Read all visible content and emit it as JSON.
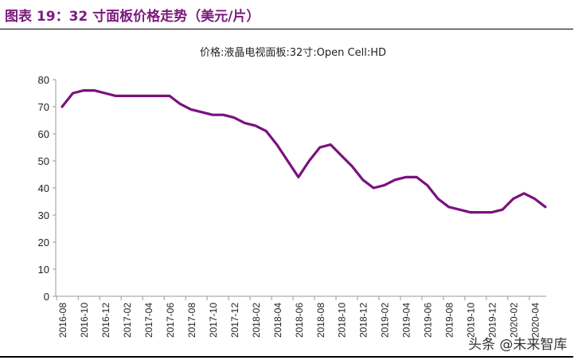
{
  "figure_title": "图表 19：32 寸面板价格走势（美元/片）",
  "watermark": "头条 @未来智库",
  "chart_data": {
    "type": "line",
    "title": "价格:液晶电视面板:32寸:Open Cell:HD",
    "xlabel": "",
    "ylabel": "",
    "ylim": [
      0,
      80
    ],
    "yticks": [
      0,
      10,
      20,
      30,
      40,
      50,
      60,
      70,
      80
    ],
    "grid": false,
    "color": "#7b117e",
    "x": [
      "2016-08",
      "2016-09",
      "2016-10",
      "2016-11",
      "2016-12",
      "2017-01",
      "2017-02",
      "2017-03",
      "2017-04",
      "2017-05",
      "2017-06",
      "2017-07",
      "2017-08",
      "2017-09",
      "2017-10",
      "2017-11",
      "2017-12",
      "2018-01",
      "2018-02",
      "2018-03",
      "2018-04",
      "2018-05",
      "2018-06",
      "2018-07",
      "2018-08",
      "2018-09",
      "2018-10",
      "2018-11",
      "2018-12",
      "2019-01",
      "2019-02",
      "2019-03",
      "2019-04",
      "2019-05",
      "2019-06",
      "2019-07",
      "2019-08",
      "2019-09",
      "2019-10",
      "2019-11",
      "2019-12",
      "2020-01",
      "2020-02",
      "2020-03",
      "2020-04",
      "2020-05"
    ],
    "values": [
      70,
      75,
      76,
      76,
      75,
      74,
      74,
      74,
      74,
      74,
      74,
      71,
      69,
      68,
      67,
      67,
      66,
      64,
      63,
      61,
      56,
      50,
      44,
      50,
      55,
      56,
      52,
      48,
      43,
      40,
      41,
      43,
      44,
      44,
      41,
      36,
      33,
      32,
      31,
      31,
      31,
      32,
      36,
      38,
      36,
      33
    ],
    "xticklabels": [
      "2016-08",
      "2016-10",
      "2016-12",
      "2017-02",
      "2017-04",
      "2017-06",
      "2017-08",
      "2017-10",
      "2017-12",
      "2018-02",
      "2018-04",
      "2018-06",
      "2018-08",
      "2018-10",
      "2018-12",
      "2019-02",
      "2019-04",
      "2019-06",
      "2019-08",
      "2019-10",
      "2019-12",
      "2020-02",
      "2020-04"
    ]
  }
}
